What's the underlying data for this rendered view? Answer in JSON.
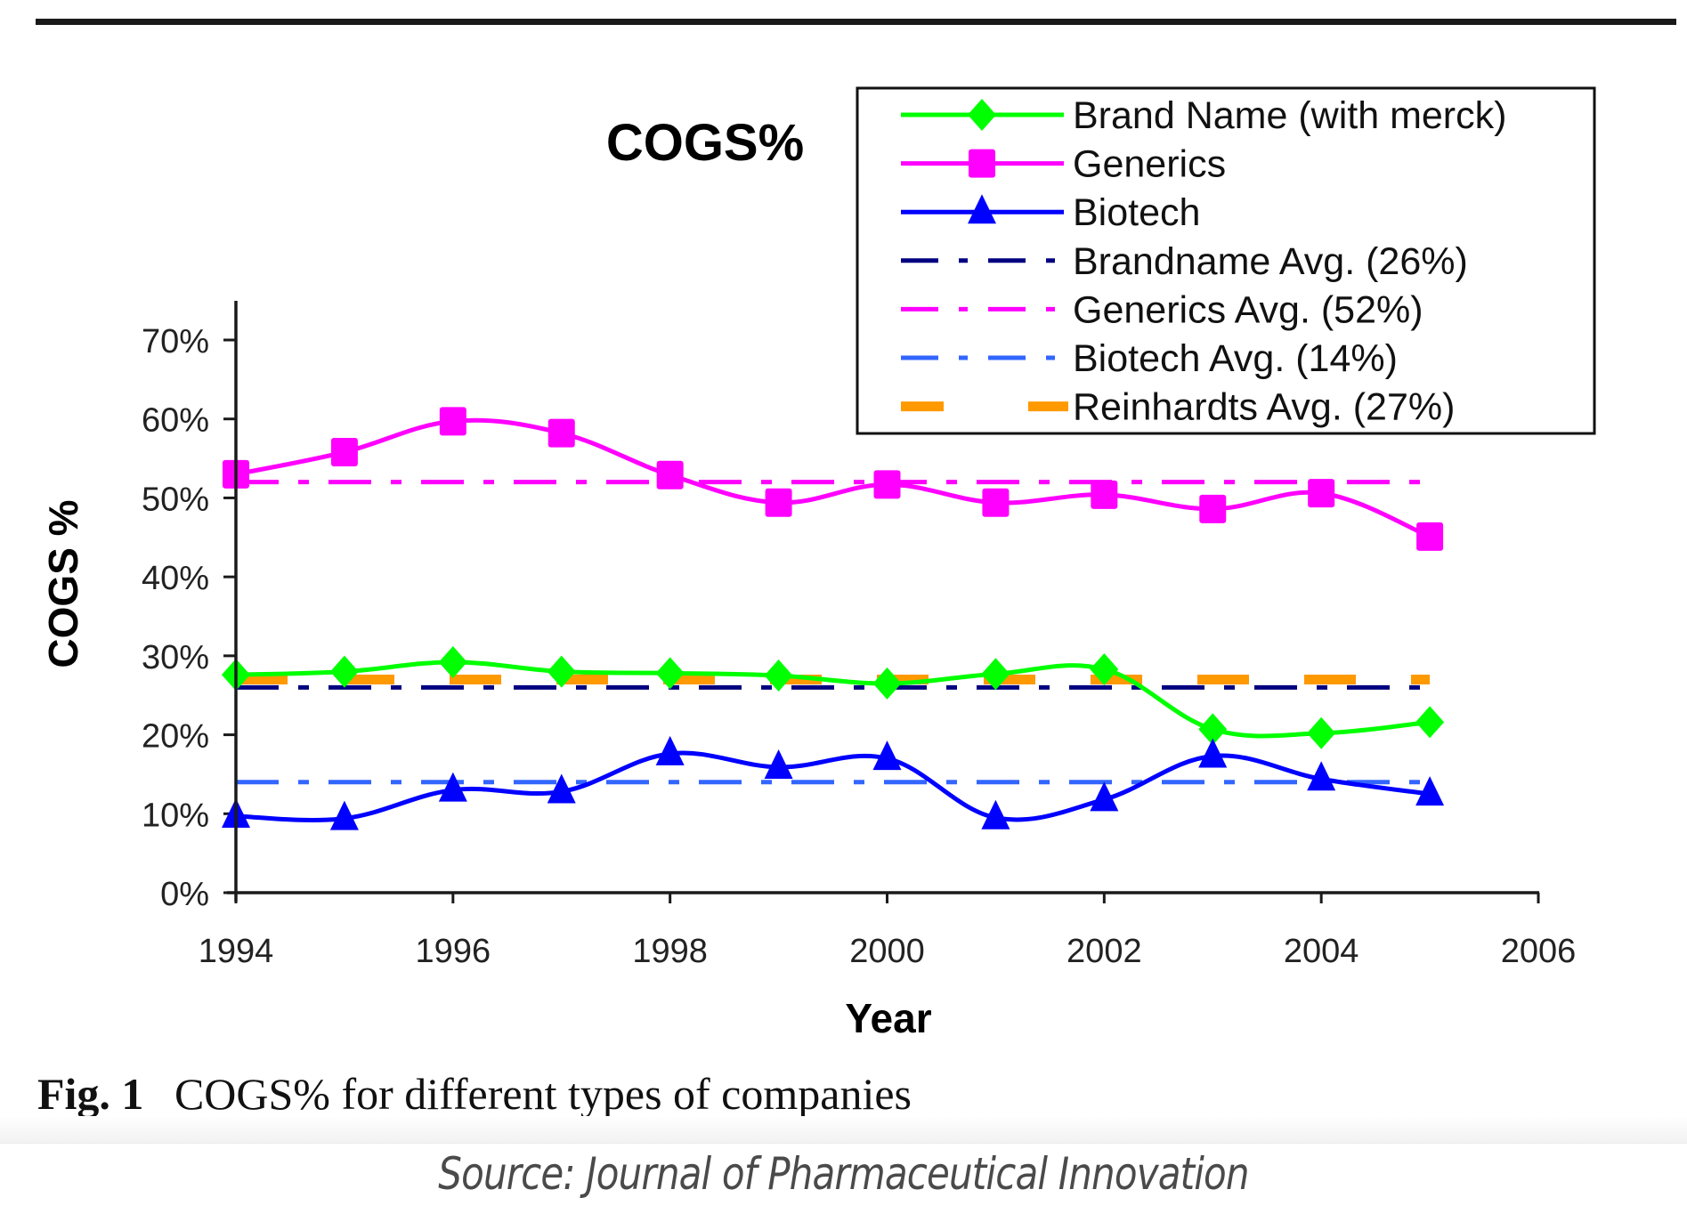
{
  "figure": {
    "caption_label": "Fig. 1",
    "caption_text": "COGS% for different types of companies",
    "source": "Source: Journal of Pharmaceutical Innovation"
  },
  "chart_data": {
    "type": "line",
    "title": "COGS%",
    "xlabel": "Year",
    "ylabel": "COGS %",
    "xlim": [
      1994,
      2006
    ],
    "ylim": [
      0,
      70
    ],
    "x_ticks": [
      1994,
      1996,
      1998,
      2000,
      2002,
      2004,
      2006
    ],
    "x_tick_labels": [
      "1994",
      "1996",
      "1998",
      "2000",
      "2002",
      "2004",
      "2006"
    ],
    "y_ticks": [
      0,
      10,
      20,
      30,
      40,
      50,
      60,
      70
    ],
    "y_tick_labels": [
      "0%",
      "10%",
      "20%",
      "30%",
      "40%",
      "50%",
      "60%",
      "70%"
    ],
    "grid": false,
    "legend_position": "top-right",
    "x": [
      1994,
      1995,
      1996,
      1997,
      1998,
      1999,
      2000,
      2001,
      2002,
      2003,
      2004,
      2005
    ],
    "series": [
      {
        "name": "Brand Name (with merck)",
        "color": "#00ff00",
        "marker": "diamond",
        "line": "solid",
        "values": [
          27.6,
          28.0,
          29.2,
          28.0,
          27.8,
          27.5,
          26.5,
          27.7,
          28.3,
          20.7,
          20.2,
          21.6
        ]
      },
      {
        "name": "Generics",
        "color": "#ff00ff",
        "marker": "square",
        "line": "solid",
        "values": [
          53.0,
          55.8,
          59.7,
          58.2,
          52.9,
          49.4,
          51.7,
          49.4,
          50.4,
          48.6,
          50.6,
          45.1
        ]
      },
      {
        "name": "Biotech",
        "color": "#0000ff",
        "marker": "triangle",
        "line": "solid",
        "values": [
          9.7,
          9.4,
          13.0,
          12.8,
          17.6,
          15.9,
          17.0,
          9.5,
          11.8,
          17.3,
          14.4,
          12.5
        ]
      }
    ],
    "reference_lines": [
      {
        "name": "Brandname Avg. (26%)",
        "value": 26,
        "color": "#000080",
        "line": "dash-dot",
        "x_range": [
          1994,
          2005
        ]
      },
      {
        "name": "Generics Avg. (52%)",
        "value": 52,
        "color": "#ff00ff",
        "line": "dash-dot",
        "x_range": [
          1994,
          2005
        ]
      },
      {
        "name": "Biotech Avg. (14%)",
        "value": 14,
        "color": "#3366ff",
        "line": "dash-dot",
        "x_range": [
          1994,
          2005
        ]
      },
      {
        "name": "Reinhardts Avg. (27%)",
        "value": 27,
        "color": "#ff9900",
        "line": "long-dash",
        "x_range": [
          1994,
          2005
        ]
      }
    ]
  }
}
